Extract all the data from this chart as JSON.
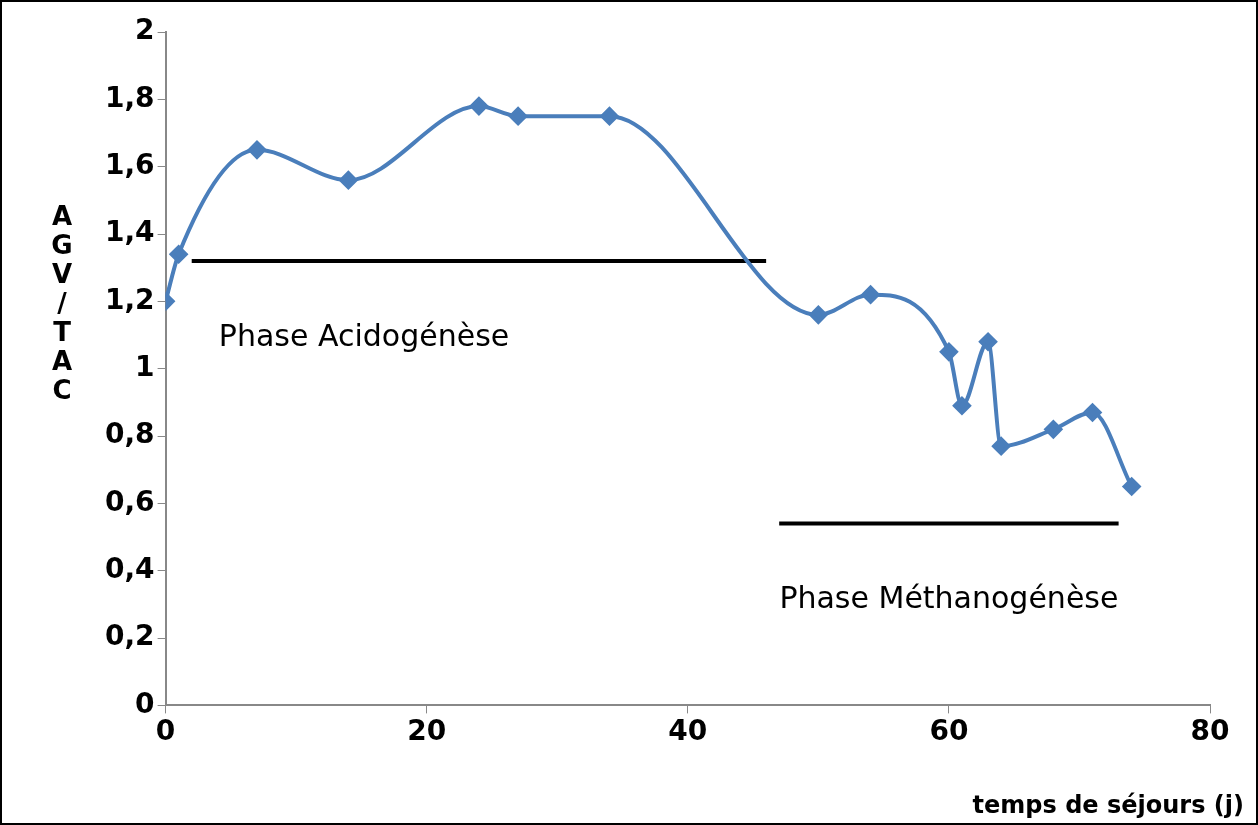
{
  "chart_data": {
    "type": "line",
    "xlabel": "temps de séjours (j)",
    "ylabel": "AGV/TAC",
    "x": [
      0,
      1,
      7,
      14,
      24,
      27,
      34,
      50,
      54,
      60,
      61,
      63,
      64,
      68,
      71,
      74
    ],
    "series": [
      {
        "color": "#4a7ebb",
        "values": [
          1.2,
          1.34,
          1.65,
          1.56,
          1.78,
          1.75,
          1.75,
          1.16,
          1.22,
          1.05,
          0.89,
          1.08,
          0.77,
          0.82,
          0.87,
          0.65
        ]
      },
      {
        "name": "Phase Acidogénèse",
        "color": "#000000",
        "x": [
          2,
          46
        ],
        "values": [
          1.32,
          1.32
        ],
        "marker": "none"
      },
      {
        "name": "Phase Méthanogénèse",
        "color": "#000000",
        "x": [
          47,
          73
        ],
        "values": [
          0.54,
          0.54
        ],
        "marker": "none"
      }
    ],
    "xlim": [
      0,
      80
    ],
    "xticks": [
      0,
      20,
      40,
      60,
      80
    ],
    "ylim": [
      0,
      2
    ],
    "yticks": [
      0,
      {
        "value": 0.2,
        "label": "0,2"
      },
      {
        "value": 0.4,
        "label": "0,4"
      },
      {
        "value": 0.6,
        "label": "0,6"
      },
      {
        "value": 0.8,
        "label": "0,8"
      },
      1,
      {
        "value": 1.2,
        "label": "1,2"
      },
      {
        "value": 1.4,
        "label": "1,4"
      },
      {
        "value": 1.6,
        "label": "1,6"
      },
      {
        "value": 1.8,
        "label": "1,8"
      },
      2
    ],
    "marker": "diamond",
    "line_style": "solid",
    "grid": false,
    "legend": false
  }
}
